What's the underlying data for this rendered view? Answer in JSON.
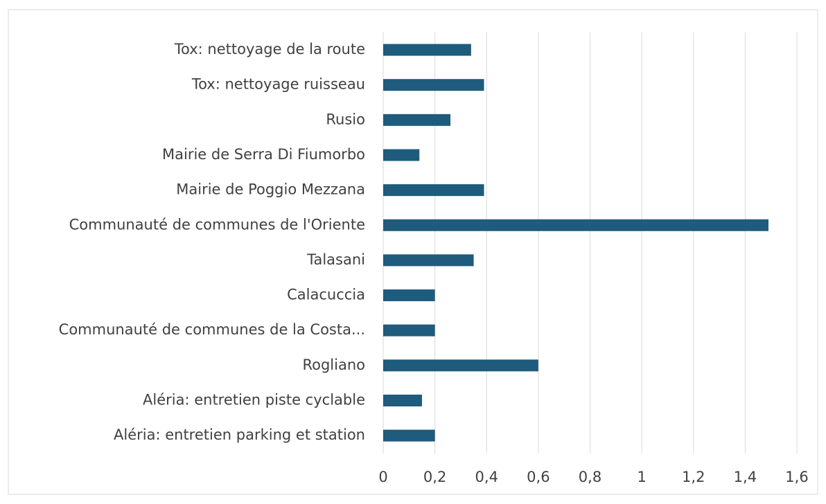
{
  "chart_data": {
    "type": "barh",
    "categories": [
      "Tox: nettoyage de la route",
      "Tox: nettoyage ruisseau",
      "Rusio",
      "Mairie de Serra Di Fiumorbo",
      "Mairie de Poggio Mezzana",
      "Communauté de communes de l'Oriente",
      "Talasani",
      "Calacuccia",
      "Communauté de communes de la Costa...",
      "Rogliano",
      "Aléria: entretien piste cyclable",
      "Aléria: entretien parking et station"
    ],
    "values": [
      0.34,
      0.39,
      0.26,
      0.14,
      0.39,
      1.49,
      0.35,
      0.2,
      0.2,
      0.6,
      0.15,
      0.2
    ],
    "color": "#1e5b7d",
    "xlim": [
      0,
      1.6
    ],
    "xticks": [
      0,
      {
        "value": 0.2,
        "label": "0,2"
      },
      {
        "value": 0.4,
        "label": "0,4"
      },
      {
        "value": 0.6,
        "label": "0,6"
      },
      {
        "value": 0.8,
        "label": "0,8"
      },
      1,
      {
        "value": 1.2,
        "label": "1,2"
      },
      {
        "value": 1.4,
        "label": "1,4"
      },
      {
        "value": 1.6,
        "label": "1,6"
      }
    ],
    "grid": true
  }
}
